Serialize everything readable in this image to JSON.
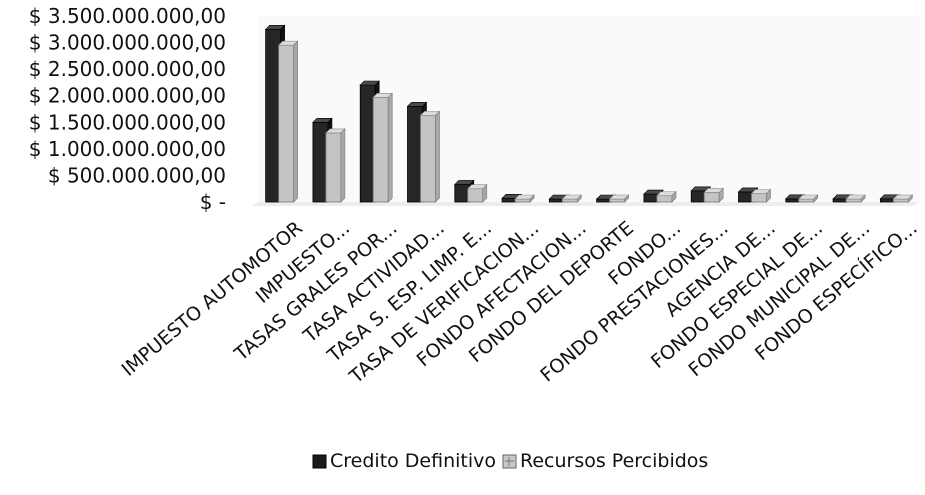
{
  "chart_data": {
    "type": "bar",
    "title": "",
    "xlabel": "",
    "ylabel": "",
    "ylim": [
      0,
      3500000000
    ],
    "y_ticks": [
      "$ 3.500.000.000,00",
      "$ 3.000.000.000,00",
      "$ 2.500.000.000,00",
      "$ 2.000.000.000,00",
      "$ 1.500.000.000,00",
      "$ 1.000.000.000,00",
      "$ 500.000.000,00",
      "$ -"
    ],
    "y_tick_values": [
      3500000000,
      3000000000,
      2500000000,
      2000000000,
      1500000000,
      1000000000,
      500000000,
      0
    ],
    "categories": [
      "IMPUESTO AUTOMOTOR",
      "IMPUESTO...",
      "TASAS GRALES POR...",
      "TASA ACTIVIDAD...",
      "TASA S. ESP. LIMP. E...",
      "TASA DE VERIFICACION...",
      "FONDO AFECTACION...",
      "FONDO DEL DEPORTE",
      "FONDO...",
      "FONDO PRESTACIONES...",
      "AGENCIA DE...",
      "FONDO ESPECIAL DE...",
      "FONDO MUNICIPAL DE...",
      "FONDO ESPECÍFICO..."
    ],
    "series": [
      {
        "name": "Credito Definitivo",
        "color": "#1f1f1f",
        "values": [
          3250000000,
          1500000000,
          2200000000,
          1800000000,
          330000000,
          70000000,
          30000000,
          40000000,
          150000000,
          210000000,
          190000000,
          60000000,
          60000000,
          60000000
        ]
      },
      {
        "name": "Recursos Percibidos",
        "color": "#bdbdbd",
        "values": [
          2950000000,
          1300000000,
          1970000000,
          1630000000,
          250000000,
          50000000,
          20000000,
          30000000,
          120000000,
          180000000,
          160000000,
          40000000,
          50000000,
          40000000
        ]
      }
    ],
    "grid": false,
    "legend_position": "bottom-center"
  }
}
